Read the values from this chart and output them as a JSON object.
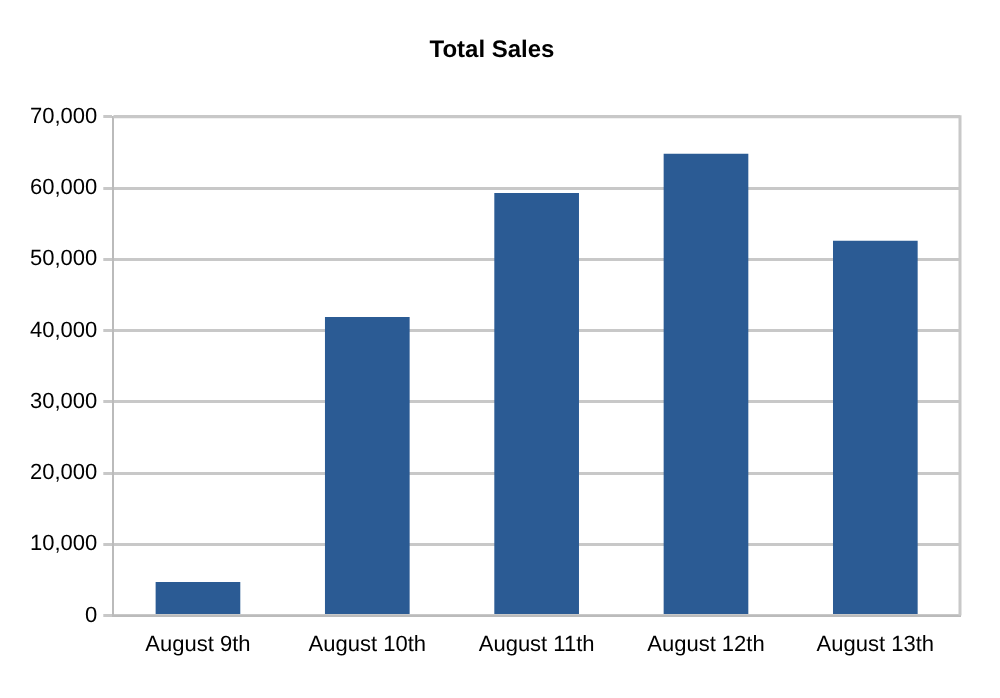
{
  "chart_data": {
    "type": "bar",
    "title": "Total Sales",
    "categories": [
      "August 9th",
      "August 10th",
      "August 11th",
      "August 12th",
      "August 13th"
    ],
    "values": [
      4700,
      41900,
      59300,
      64800,
      52600
    ],
    "color": "#2b5b94",
    "ylim": [
      0,
      70000
    ],
    "yticks": [
      0,
      {
        "value": 10000,
        "label": "10,000"
      },
      {
        "value": 20000,
        "label": "20,000"
      },
      {
        "value": 30000,
        "label": "30,000"
      },
      {
        "value": 40000,
        "label": "40,000"
      },
      {
        "value": 50000,
        "label": "50,000"
      },
      {
        "value": 60000,
        "label": "60,000"
      },
      {
        "value": 70000,
        "label": "70,000"
      }
    ],
    "grid": "y",
    "legend": false
  }
}
